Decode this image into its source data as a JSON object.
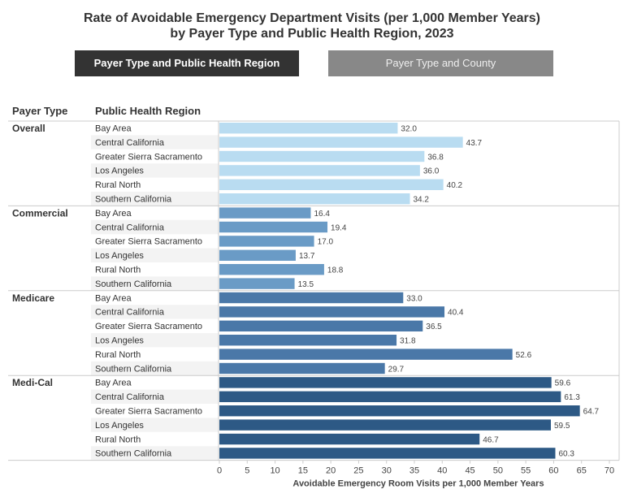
{
  "title_line1": "Rate of Avoidable Emergency Department Visits (per 1,000 Member Years)",
  "title_line2": "by Payer Type and Public Health Region, 2023",
  "buttons": [
    {
      "label": "Payer Type and Public Health Region",
      "active": true
    },
    {
      "label": "Payer Type and County",
      "active": false
    }
  ],
  "chart_data": {
    "type": "bar",
    "orientation": "horizontal",
    "column_headers": [
      "Payer Type",
      "Public Health Region"
    ],
    "categories": [
      "Bay Area",
      "Central California",
      "Greater Sierra Sacramento",
      "Los Angeles",
      "Rural North",
      "Southern California"
    ],
    "groups": [
      {
        "name": "Overall",
        "color": "#b9dcf1",
        "values": [
          32.0,
          43.7,
          36.8,
          36.0,
          40.2,
          34.2
        ]
      },
      {
        "name": "Commercial",
        "color": "#6a9bc6",
        "values": [
          16.4,
          19.4,
          17.0,
          13.7,
          18.8,
          13.5
        ]
      },
      {
        "name": "Medicare",
        "color": "#4a78a8",
        "values": [
          33.0,
          40.4,
          36.5,
          31.8,
          52.6,
          29.7
        ]
      },
      {
        "name": "Medi-Cal",
        "color": "#2d5985",
        "values": [
          59.6,
          61.3,
          64.7,
          59.5,
          46.7,
          60.3
        ]
      }
    ],
    "xlabel": "Avoidable Emergency Room Visits per 1,000 Member Years",
    "xlim": [
      0,
      70
    ],
    "xticks": [
      0,
      5,
      10,
      15,
      20,
      25,
      30,
      35,
      40,
      45,
      50,
      55,
      60,
      65,
      70
    ],
    "grid": false
  }
}
